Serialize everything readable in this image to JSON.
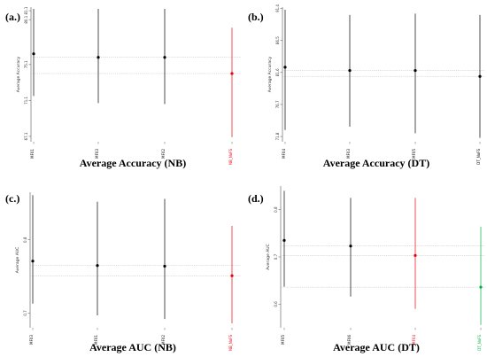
{
  "chart_data": [
    {
      "panel_label": "(a.)",
      "type": "scatter",
      "title": "Average Accuracy (NB)",
      "ylabel": "Average Accuracy",
      "yticks": [
        "67.1",
        "71.1",
        "75.1",
        "80.1",
        "81.1"
      ],
      "ylim": [
        66.5,
        81.5
      ],
      "categories": [
        "MF01",
        "MF03",
        "MF02",
        "NB_NoFS"
      ],
      "category_colors": [
        "#000000",
        "#000000",
        "#000000",
        "#e8000b"
      ],
      "points": [
        {
          "x": "MF01",
          "y": 76.3,
          "low": 71.6,
          "high": 81.3
        },
        {
          "x": "MF03",
          "y": 75.9,
          "low": 70.8,
          "high": 81.3
        },
        {
          "x": "MF02",
          "y": 75.9,
          "low": 70.7,
          "high": 81.3
        },
        {
          "x": "NB_NoFS",
          "y": 74.1,
          "low": 67.0,
          "high": 79.2
        }
      ],
      "ref_lines": [
        75.9,
        74.1
      ],
      "grid": false
    },
    {
      "panel_label": "(b.)",
      "type": "scatter",
      "title": "Average Accuracy (DT)",
      "ylabel": "Average Accuracy",
      "yticks": [
        "71.8",
        "76.7",
        "81.6",
        "86.5",
        "91.4"
      ],
      "ylim": [
        71.0,
        91.6
      ],
      "categories": [
        "MF04",
        "MF03",
        "MF05",
        "DT_NoFS"
      ],
      "category_colors": [
        "#000000",
        "#000000",
        "#000000",
        "#000000"
      ],
      "points": [
        {
          "x": "MF04",
          "y": 82.4,
          "low": 72.8,
          "high": 91.2
        },
        {
          "x": "MF03",
          "y": 81.9,
          "low": 73.3,
          "high": 90.4
        },
        {
          "x": "MF05",
          "y": 81.9,
          "low": 72.3,
          "high": 90.6
        },
        {
          "x": "DT_NoFS",
          "y": 81.0,
          "low": 71.6,
          "high": 90.4
        }
      ],
      "ref_lines": [
        81.9,
        81.0
      ],
      "grid": false
    },
    {
      "panel_label": "(c.)",
      "type": "scatter",
      "title": "Average AUC (NB)",
      "ylabel": "Average AUC",
      "yticks": [
        "0.7",
        "0.8"
      ],
      "ylim": [
        0.68,
        0.865
      ],
      "categories": [
        "MF03",
        "MF01",
        "MF02",
        "NB_NoFS"
      ],
      "category_colors": [
        "#000000",
        "#000000",
        "#000000",
        "#e8000b"
      ],
      "points": [
        {
          "x": "MF03",
          "y": 0.771,
          "low": 0.713,
          "high": 0.861
        },
        {
          "x": "MF01",
          "y": 0.765,
          "low": 0.697,
          "high": 0.852
        },
        {
          "x": "MF02",
          "y": 0.764,
          "low": 0.692,
          "high": 0.856
        },
        {
          "x": "NB_NoFS",
          "y": 0.751,
          "low": 0.686,
          "high": 0.819
        }
      ],
      "ref_lines": [
        0.765,
        0.751
      ],
      "grid": false
    },
    {
      "panel_label": "(d.)",
      "type": "scatter",
      "title": "Average AUC (DT)",
      "ylabel": "Average AUC",
      "yticks": [
        "0.6",
        "0.7",
        "0.8"
      ],
      "ylim": [
        0.55,
        0.85
      ],
      "categories": [
        "MF05",
        "MF06",
        "MF04",
        "DT_NoFS"
      ],
      "category_colors": [
        "#000000",
        "#000000",
        "#e8000b",
        "#00b34a"
      ],
      "points": [
        {
          "x": "MF05",
          "y": 0.735,
          "low": 0.637,
          "high": 0.84
        },
        {
          "x": "MF06",
          "y": 0.723,
          "low": 0.616,
          "high": 0.825
        },
        {
          "x": "MF04",
          "y": 0.703,
          "low": 0.59,
          "high": 0.825
        },
        {
          "x": "DT_NoFS",
          "y": 0.636,
          "low": 0.556,
          "high": 0.764
        }
      ],
      "ref_lines": [
        0.723,
        0.703,
        0.636
      ],
      "grid": false
    }
  ]
}
